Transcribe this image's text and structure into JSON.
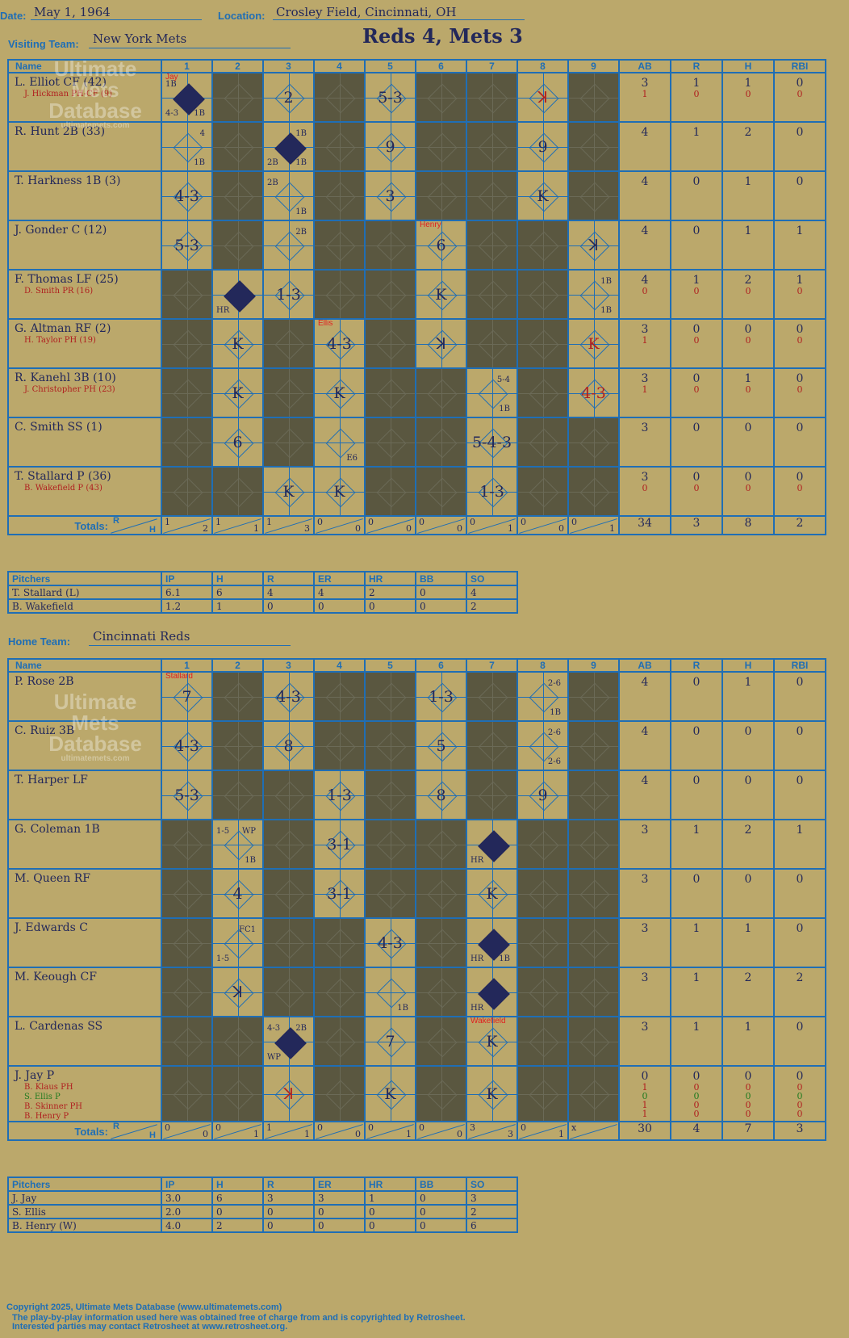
{
  "header": {
    "date_label": "Date:",
    "date": "May 1, 1964",
    "location_label": "Location:",
    "location": "Crosley Field, Cincinnati, OH",
    "visiting_label": "Visiting Team:",
    "visiting_team": "New York Mets",
    "home_label": "Home Team:",
    "home_team": "Cincinnati Reds",
    "result": "Reds 4, Mets 3"
  },
  "watermark": {
    "line1": "Ultimate",
    "line2": "Mets",
    "line3": "Database",
    "url": "ultimatemets.com"
  },
  "columns": {
    "name": "Name",
    "innings": [
      "1",
      "2",
      "3",
      "4",
      "5",
      "6",
      "7",
      "8",
      "9"
    ],
    "stats": [
      "AB",
      "R",
      "H",
      "RBI"
    ],
    "totals": "Totals:",
    "r": "R",
    "h": "H"
  },
  "pitcher_columns": [
    "Pitchers",
    "IP",
    "H",
    "R",
    "ER",
    "HR",
    "BB",
    "SO"
  ],
  "visitors": {
    "batters": [
      {
        "name": "L. Elliot CF (42)",
        "subs": [
          "J. Hickman PH-CF (9)"
        ],
        "stats": [
          "3",
          "1",
          "1",
          "0"
        ],
        "sub_stats": [
          [
            "1",
            "0",
            "0",
            "0"
          ]
        ]
      },
      {
        "name": "R. Hunt 2B (33)",
        "subs": [],
        "stats": [
          "4",
          "1",
          "2",
          "0"
        ],
        "sub_stats": []
      },
      {
        "name": "T. Harkness 1B (3)",
        "subs": [],
        "stats": [
          "4",
          "0",
          "1",
          "0"
        ],
        "sub_stats": []
      },
      {
        "name": "J. Gonder C (12)",
        "subs": [],
        "stats": [
          "4",
          "0",
          "1",
          "1"
        ],
        "sub_stats": []
      },
      {
        "name": "F. Thomas LF (25)",
        "subs": [
          "D. Smith PR (16)"
        ],
        "stats": [
          "4",
          "1",
          "2",
          "1"
        ],
        "sub_stats": [
          [
            "0",
            "0",
            "0",
            "0"
          ]
        ]
      },
      {
        "name": "G. Altman RF (2)",
        "subs": [
          "H. Taylor PH (19)"
        ],
        "stats": [
          "3",
          "0",
          "0",
          "0"
        ],
        "sub_stats": [
          [
            "1",
            "0",
            "0",
            "0"
          ]
        ]
      },
      {
        "name": "R. Kanehl 3B (10)",
        "subs": [
          "J. Christopher PH (23)"
        ],
        "stats": [
          "3",
          "0",
          "1",
          "0"
        ],
        "sub_stats": [
          [
            "1",
            "0",
            "0",
            "0"
          ]
        ]
      },
      {
        "name": "C. Smith SS (1)",
        "subs": [],
        "stats": [
          "3",
          "0",
          "0",
          "0"
        ],
        "sub_stats": []
      },
      {
        "name": "T. Stallard P (36)",
        "subs": [
          "B. Wakefield P (43)"
        ],
        "stats": [
          "3",
          "0",
          "0",
          "0"
        ],
        "sub_stats": [
          [
            "0",
            "0",
            "0",
            "0"
          ]
        ]
      }
    ],
    "cells": [
      [
        {
          "res": "",
          "tl": "1B",
          "bl": "4-3",
          "br": "1B",
          "run": true,
          "pitcher": "Jay"
        },
        {
          "dark": true
        },
        {
          "res": "2"
        },
        {
          "dark": true
        },
        {
          "res": "5-3"
        },
        {
          "dark": true
        },
        {
          "dark": true
        },
        {
          "res": "ꓘ",
          "red": true
        },
        {
          "dark": true
        }
      ],
      [
        {
          "res": "",
          "tr": "4",
          "br": "1B"
        },
        {
          "dark": true
        },
        {
          "res": "",
          "tr": "1B",
          "bl": "2B",
          "br": "1B",
          "run": true
        },
        {
          "dark": true
        },
        {
          "res": "9"
        },
        {
          "dark": true
        },
        {
          "dark": true
        },
        {
          "res": "9"
        },
        {
          "dark": true
        }
      ],
      [
        {
          "res": "4-3"
        },
        {
          "dark": true
        },
        {
          "res": "",
          "tl": "2B",
          "br": "1B"
        },
        {
          "dark": true
        },
        {
          "res": "3"
        },
        {
          "dark": true
        },
        {
          "dark": true
        },
        {
          "res": "K"
        },
        {
          "dark": true
        }
      ],
      [
        {
          "res": "5-3"
        },
        {
          "dark": true
        },
        {
          "res": "",
          "tr": "2B"
        },
        {
          "dark": true
        },
        {
          "dark": true
        },
        {
          "res": "6",
          "pitcher": "Henry"
        },
        {
          "dark": true
        },
        {
          "dark": true
        },
        {
          "res": "ꓘ"
        }
      ],
      [
        {
          "dark": true
        },
        {
          "res": "",
          "bl": "HR",
          "run": true
        },
        {
          "res": "1-3"
        },
        {
          "dark": true
        },
        {
          "dark": true
        },
        {
          "res": "K"
        },
        {
          "dark": true
        },
        {
          "dark": true
        },
        {
          "res": "",
          "tr": "1B",
          "br": "1B"
        }
      ],
      [
        {
          "dark": true
        },
        {
          "res": "K"
        },
        {
          "dark": true
        },
        {
          "res": "4-3",
          "pitcher": "Ellis"
        },
        {
          "dark": true
        },
        {
          "res": "ꓘ"
        },
        {
          "dark": true
        },
        {
          "dark": true
        },
        {
          "res": "K",
          "red": true
        }
      ],
      [
        {
          "dark": true
        },
        {
          "res": "K"
        },
        {
          "dark": true
        },
        {
          "res": "K"
        },
        {
          "dark": true
        },
        {
          "dark": true
        },
        {
          "res": "",
          "tr": "5-4",
          "br": "1B"
        },
        {
          "dark": true
        },
        {
          "res": "4-3",
          "red": true
        }
      ],
      [
        {
          "dark": true
        },
        {
          "res": "6"
        },
        {
          "dark": true
        },
        {
          "res": "",
          "br": "E6"
        },
        {
          "dark": true
        },
        {
          "dark": true
        },
        {
          "res": "5-4-3"
        },
        {
          "dark": true
        },
        {
          "dark": true
        }
      ],
      [
        {
          "dark": true
        },
        {
          "dark": true
        },
        {
          "res": "K"
        },
        {
          "res": "K"
        },
        {
          "dark": true
        },
        {
          "dark": true
        },
        {
          "res": "1-3"
        },
        {
          "dark": true
        },
        {
          "dark": true
        }
      ]
    ],
    "totals": {
      "innings": [
        [
          "1",
          "2"
        ],
        [
          "1",
          "1"
        ],
        [
          "1",
          "3"
        ],
        [
          "0",
          "0"
        ],
        [
          "0",
          "0"
        ],
        [
          "0",
          "0"
        ],
        [
          "0",
          "1"
        ],
        [
          "0",
          "0"
        ],
        [
          "0",
          "1"
        ]
      ],
      "stats": [
        "34",
        "3",
        "8",
        "2"
      ]
    },
    "pitchers": [
      [
        "T. Stallard (L)",
        "6.1",
        "6",
        "4",
        "4",
        "2",
        "0",
        "4"
      ],
      [
        "B. Wakefield",
        "1.2",
        "1",
        "0",
        "0",
        "0",
        "0",
        "2"
      ]
    ]
  },
  "home": {
    "batters": [
      {
        "name": "P. Rose 2B",
        "subs": [],
        "stats": [
          "4",
          "0",
          "1",
          "0"
        ],
        "sub_stats": []
      },
      {
        "name": "C. Ruiz 3B",
        "subs": [],
        "stats": [
          "4",
          "0",
          "0",
          "0"
        ],
        "sub_stats": []
      },
      {
        "name": "T. Harper LF",
        "subs": [],
        "stats": [
          "4",
          "0",
          "0",
          "0"
        ],
        "sub_stats": []
      },
      {
        "name": "G. Coleman 1B",
        "subs": [],
        "stats": [
          "3",
          "1",
          "2",
          "1"
        ],
        "sub_stats": []
      },
      {
        "name": "M. Queen RF",
        "subs": [],
        "stats": [
          "3",
          "0",
          "0",
          "0"
        ],
        "sub_stats": []
      },
      {
        "name": "J. Edwards C",
        "subs": [],
        "stats": [
          "3",
          "1",
          "1",
          "0"
        ],
        "sub_stats": []
      },
      {
        "name": "M. Keough CF",
        "subs": [],
        "stats": [
          "3",
          "1",
          "2",
          "2"
        ],
        "sub_stats": []
      },
      {
        "name": "L. Cardenas SS",
        "subs": [],
        "stats": [
          "3",
          "1",
          "1",
          "0"
        ],
        "sub_stats": []
      },
      {
        "name": "J. Jay P",
        "subs": [
          "B. Klaus PH",
          "S. Ellis P",
          "B. Skinner PH",
          "B. Henry P"
        ],
        "stats": [
          "0",
          "0",
          "0",
          "0"
        ],
        "sub_stats": [
          [
            "1",
            "0",
            "0",
            "0"
          ],
          [
            "0",
            "0",
            "0",
            "0"
          ],
          [
            "1",
            "0",
            "0",
            "0"
          ],
          [
            "1",
            "0",
            "0",
            "0"
          ]
        ]
      }
    ],
    "cells": [
      [
        {
          "res": "7",
          "pitcher": "Stallard"
        },
        {
          "dark": true
        },
        {
          "res": "4-3"
        },
        {
          "dark": true
        },
        {
          "dark": true
        },
        {
          "res": "1-3"
        },
        {
          "dark": true
        },
        {
          "res": "",
          "tr": "2-6",
          "br": "1B"
        },
        {
          "dark": true
        }
      ],
      [
        {
          "res": "4-3"
        },
        {
          "dark": true
        },
        {
          "res": "8"
        },
        {
          "dark": true
        },
        {
          "dark": true
        },
        {
          "res": "5"
        },
        {
          "dark": true
        },
        {
          "res": "",
          "tr": "2-6",
          "br": "2-6"
        },
        {
          "dark": true
        }
      ],
      [
        {
          "res": "5-3"
        },
        {
          "dark": true
        },
        {
          "dark": true
        },
        {
          "res": "1-3"
        },
        {
          "dark": true
        },
        {
          "res": "8"
        },
        {
          "dark": true
        },
        {
          "res": "9"
        },
        {
          "dark": true
        }
      ],
      [
        {
          "dark": true
        },
        {
          "res": "",
          "tl": "1-5",
          "tr": "WP",
          "br": "1B"
        },
        {
          "dark": true
        },
        {
          "res": "3-1"
        },
        {
          "dark": true
        },
        {
          "dark": true
        },
        {
          "res": "",
          "bl": "HR",
          "run": true
        },
        {
          "dark": true
        },
        {
          "dark": true
        }
      ],
      [
        {
          "dark": true
        },
        {
          "res": "4"
        },
        {
          "dark": true
        },
        {
          "res": "3-1"
        },
        {
          "dark": true
        },
        {
          "dark": true
        },
        {
          "res": "K"
        },
        {
          "dark": true
        },
        {
          "dark": true
        }
      ],
      [
        {
          "dark": true
        },
        {
          "res": "",
          "tr": "FC1",
          "bl": "1-5"
        },
        {
          "dark": true
        },
        {
          "dark": true
        },
        {
          "res": "4-3"
        },
        {
          "dark": true
        },
        {
          "res": "",
          "bl": "HR",
          "br": "1B",
          "run": true
        },
        {
          "dark": true
        },
        {
          "dark": true
        }
      ],
      [
        {
          "dark": true
        },
        {
          "res": "ꓘ"
        },
        {
          "dark": true
        },
        {
          "dark": true
        },
        {
          "res": "",
          "br": "1B"
        },
        {
          "dark": true
        },
        {
          "res": "",
          "bl": "HR",
          "run": true
        },
        {
          "dark": true
        },
        {
          "dark": true
        }
      ],
      [
        {
          "dark": true
        },
        {
          "dark": true
        },
        {
          "res": "",
          "tl": "4-3",
          "tr": "2B",
          "bl": "WP",
          "run": true
        },
        {
          "dark": true
        },
        {
          "res": "7"
        },
        {
          "dark": true
        },
        {
          "res": "K",
          "pitcher": "Wakefield"
        },
        {
          "dark": true
        },
        {
          "dark": true
        }
      ],
      [
        {
          "dark": true
        },
        {
          "dark": true
        },
        {
          "res": "ꓘ",
          "red": true
        },
        {
          "dark": true
        },
        {
          "res": "K"
        },
        {
          "dark": true
        },
        {
          "res": "K"
        },
        {
          "dark": true
        },
        {
          "dark": true
        }
      ]
    ],
    "totals": {
      "innings": [
        [
          "0",
          "0"
        ],
        [
          "0",
          "1"
        ],
        [
          "1",
          "1"
        ],
        [
          "0",
          "0"
        ],
        [
          "0",
          "1"
        ],
        [
          "0",
          "0"
        ],
        [
          "3",
          "3"
        ],
        [
          "0",
          "1"
        ],
        [
          "x",
          ""
        ]
      ],
      "stats": [
        "30",
        "4",
        "7",
        "3"
      ]
    },
    "pitchers": [
      [
        "J. Jay",
        "3.0",
        "6",
        "3",
        "3",
        "1",
        "0",
        "3"
      ],
      [
        "S. Ellis",
        "2.0",
        "0",
        "0",
        "0",
        "0",
        "0",
        "2"
      ],
      [
        "B. Henry (W)",
        "4.0",
        "2",
        "0",
        "0",
        "0",
        "0",
        "6"
      ]
    ]
  },
  "footer": {
    "line1": "Copyright 2025, Ultimate Mets Database (www.ultimatemets.com)",
    "line2": "The play-by-play information used here was obtained free of charge from and is copyrighted by Retrosheet.",
    "line3": "Interested parties may contact Retrosheet at www.retrosheet.org."
  },
  "colors": {
    "background": "#bba86b",
    "grid": "#1f6eb5",
    "dark_cell": "#5a5740",
    "ink": "#23285a",
    "red_ink": "#b02020"
  }
}
